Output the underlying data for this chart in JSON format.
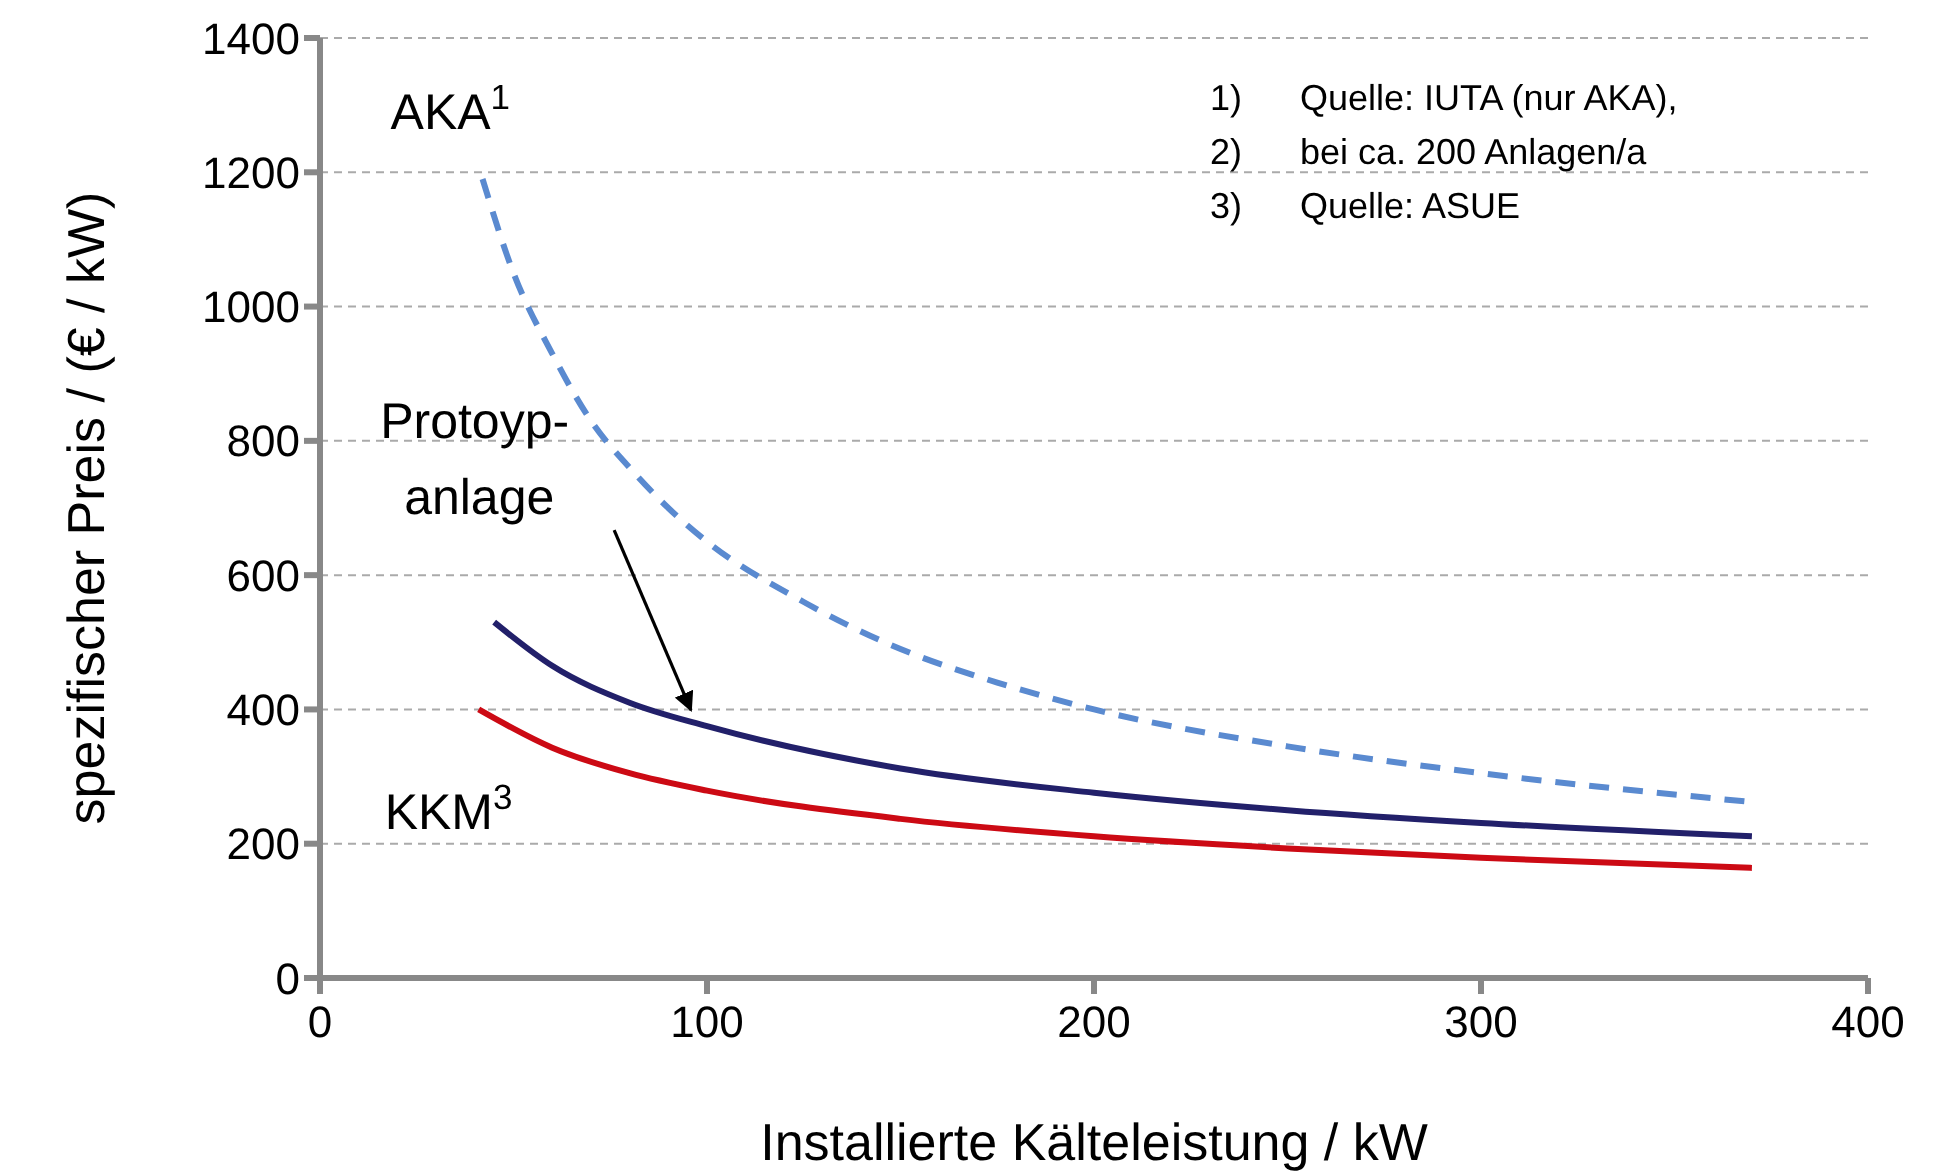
{
  "chart_data": {
    "type": "line",
    "xlabel": "Installierte Kälteleistung / kW",
    "ylabel": "spezifischer Preis / (€ / kW)",
    "xlim": [
      0,
      400
    ],
    "xticks": [
      0,
      100,
      200,
      300,
      400
    ],
    "ylim": [
      0,
      1400
    ],
    "yticks": [
      0,
      200,
      400,
      600,
      800,
      1000,
      1200,
      1400
    ],
    "grid": "y",
    "marker": "none",
    "series": [
      {
        "name": "AKA$^{1}$",
        "color": "#5a8ad0",
        "line_style": "dashed",
        "x": [
          42,
          50,
          60,
          70,
          80,
          90,
          100,
          125,
          150,
          175,
          200,
          250,
          300,
          370
        ],
        "values": [
          1190,
          1050,
          930,
          830,
          760,
          700,
          650,
          560,
          490,
          440,
          400,
          345,
          305,
          262
        ]
      },
      {
        "name": "Protoyp-\nanlage",
        "color": "#22206a",
        "line_style": "solid",
        "x": [
          45,
          60,
          80,
          100,
          150,
          200,
          250,
          300,
          370
        ],
        "values": [
          530,
          465,
          410,
          375,
          312,
          276,
          250,
          231,
          211
        ]
      },
      {
        "name": "KKM$^{3}$",
        "color": "#cc0a14",
        "line_style": "solid",
        "x": [
          41,
          60,
          80,
          100,
          150,
          200,
          250,
          300,
          370
        ],
        "values": [
          400,
          343,
          305,
          279,
          237,
          211,
          193,
          179,
          164
        ]
      }
    ],
    "annotations": [
      "1) Quelle: IUTA (nur AKA),",
      "2) bei ca. 200 Anlagen/a",
      "3) Quelle: ASUE"
    ]
  }
}
